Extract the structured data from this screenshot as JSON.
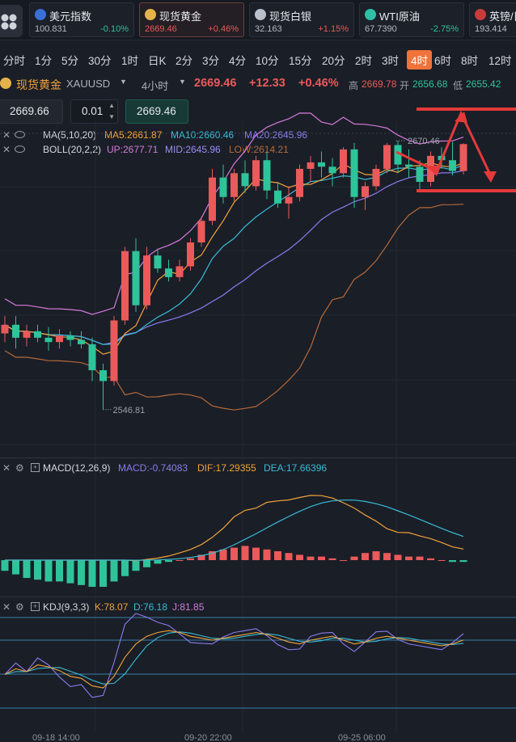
{
  "tickers": [
    {
      "name": "美元指数",
      "price": "100.831",
      "change": "-0.10%",
      "dir": "down",
      "icon": "us-flag-icon",
      "active": false
    },
    {
      "name": "现货黄金",
      "price": "2669.46",
      "change": "+0.46%",
      "dir": "up",
      "icon": "gold-coin-icon",
      "active": true
    },
    {
      "name": "现货白银",
      "price": "32.163",
      "change": "+1.15%",
      "dir": "up",
      "icon": "silver-coin-icon",
      "active": false
    },
    {
      "name": "WTI原油",
      "price": "67.7390",
      "change": "-2.75%",
      "dir": "down",
      "icon": "oil-icon",
      "active": false
    },
    {
      "name": "英镑/日",
      "price": "193.414",
      "change": "",
      "dir": "up",
      "icon": "uk-flag-icon",
      "active": false
    }
  ],
  "periods": [
    "分时",
    "1分",
    "5分",
    "30分",
    "1时",
    "日K",
    "2分",
    "3分",
    "4分",
    "10分",
    "15分",
    "20分",
    "2时",
    "3时",
    "4时",
    "6时",
    "8时",
    "12时"
  ],
  "selected_period": "4时",
  "symbol": {
    "name": "现货黄金",
    "code": "XAUUSD",
    "timeframe": "4小时",
    "price": "2669.46",
    "change": "+12.33",
    "change_pct": "+0.46%",
    "high_label": "高",
    "high": "2669.78",
    "open_label": "开",
    "open": "2656.68",
    "low_label": "低",
    "low": "2655.42"
  },
  "order": {
    "sell_price": "2669.66",
    "lot": "0.01",
    "buy_price": "2669.46"
  },
  "indicators": {
    "ma": {
      "label": "MA(5,10,20)",
      "ma5": "MA5:2661.87",
      "ma10": "MA10:2660.46",
      "ma20": "MA20:2645.96"
    },
    "boll": {
      "label": "BOLL(20,2,2)",
      "up": "UP:2677.71",
      "mid": "MID:2645.96",
      "low": "LOW:2614.21"
    },
    "macd": {
      "label": "MACD(12,26,9)",
      "macd": "MACD:-0.74083",
      "dif": "DIF:17.29355",
      "dea": "DEA:17.66396"
    },
    "kdj": {
      "label": "KDJ(9,3,3)",
      "k": "K:78.07",
      "d": "D:76.18",
      "j": "J:81.85"
    }
  },
  "annotations": {
    "high_mark": "2670.46",
    "low_mark": "2546.81"
  },
  "time_axis": [
    "09-18 14:00",
    "09-20 22:00",
    "09-25 06:00"
  ],
  "colors": {
    "up": "#ea5a5a",
    "down": "#2fc39a",
    "accent": "#f0733a",
    "ma5": "#f2a33a",
    "ma10": "#38bcd6",
    "ma20": "#8b7cf0",
    "boll_up": "#d57ad8",
    "boll_low": "#b56a3a",
    "red_line": "#e53a3a"
  },
  "chart_data": {
    "type": "candlestick",
    "series": [
      {
        "name": "candles",
        "ohlc": [
          [
            2582,
            2590,
            2578,
            2586
          ],
          [
            2586,
            2590,
            2575,
            2580
          ],
          [
            2580,
            2586,
            2576,
            2583
          ],
          [
            2583,
            2586,
            2578,
            2580
          ],
          [
            2580,
            2585,
            2574,
            2578
          ],
          [
            2578,
            2584,
            2575,
            2581
          ],
          [
            2581,
            2583,
            2576,
            2579
          ],
          [
            2579,
            2583,
            2575,
            2577
          ],
          [
            2577,
            2580,
            2560,
            2565
          ],
          [
            2565,
            2568,
            2546.81,
            2560
          ],
          [
            2560,
            2590,
            2558,
            2588
          ],
          [
            2588,
            2622,
            2586,
            2620
          ],
          [
            2620,
            2626,
            2592,
            2595
          ],
          [
            2595,
            2622,
            2593,
            2618
          ],
          [
            2618,
            2621,
            2610,
            2612
          ],
          [
            2612,
            2616,
            2606,
            2608
          ],
          [
            2608,
            2616,
            2606,
            2613
          ],
          [
            2613,
            2626,
            2611,
            2624
          ],
          [
            2624,
            2636,
            2622,
            2634
          ],
          [
            2634,
            2658,
            2632,
            2654
          ],
          [
            2654,
            2660,
            2642,
            2645
          ],
          [
            2645,
            2658,
            2643,
            2656
          ],
          [
            2656,
            2662,
            2647,
            2650
          ],
          [
            2650,
            2664,
            2648,
            2662
          ],
          [
            2662,
            2666,
            2644,
            2648
          ],
          [
            2648,
            2652,
            2640,
            2642
          ],
          [
            2642,
            2650,
            2635,
            2645
          ],
          [
            2645,
            2660,
            2643,
            2658
          ],
          [
            2658,
            2664,
            2652,
            2661
          ],
          [
            2661,
            2666,
            2654,
            2659
          ],
          [
            2659,
            2663,
            2650,
            2656
          ],
          [
            2656,
            2668,
            2654,
            2667
          ],
          [
            2667,
            2670,
            2640,
            2645
          ],
          [
            2645,
            2652,
            2639,
            2650
          ],
          [
            2650,
            2660,
            2648,
            2658
          ],
          [
            2658,
            2670,
            2656,
            2669
          ],
          [
            2669,
            2671,
            2656,
            2660
          ],
          [
            2660,
            2667,
            2654,
            2659
          ],
          [
            2659,
            2662,
            2648,
            2652
          ],
          [
            2652,
            2666,
            2650,
            2664
          ],
          [
            2664,
            2668,
            2658,
            2662
          ],
          [
            2662,
            2670.46,
            2655,
            2657
          ],
          [
            2657,
            2669.78,
            2655.42,
            2669.46
          ]
        ]
      },
      {
        "name": "MA",
        "values": []
      },
      {
        "name": "MACD",
        "histogram": [
          -6,
          -8,
          -10,
          -11,
          -12,
          -12,
          -13,
          -14,
          -15,
          -15,
          -12,
          -9,
          -6,
          -4,
          -2,
          -1,
          0,
          1,
          3,
          5,
          6,
          7,
          8,
          7,
          6,
          5,
          4,
          3,
          2,
          2,
          1,
          0,
          2,
          4,
          5,
          4,
          3,
          2,
          2,
          1,
          0,
          -1,
          -1
        ]
      },
      {
        "name": "KDJ",
        "k": [
          42,
          48,
          45,
          52,
          50,
          46,
          40,
          38,
          30,
          28,
          40,
          60,
          74,
          82,
          86,
          88,
          86,
          82,
          80,
          78,
          80,
          82,
          84,
          86,
          84,
          80,
          76,
          74,
          78,
          80,
          82,
          78,
          74,
          76,
          80,
          82,
          80,
          78,
          76,
          74,
          72,
          74,
          78.07
        ]
      }
    ],
    "annotations": [
      "2670.46",
      "2546.81"
    ]
  }
}
